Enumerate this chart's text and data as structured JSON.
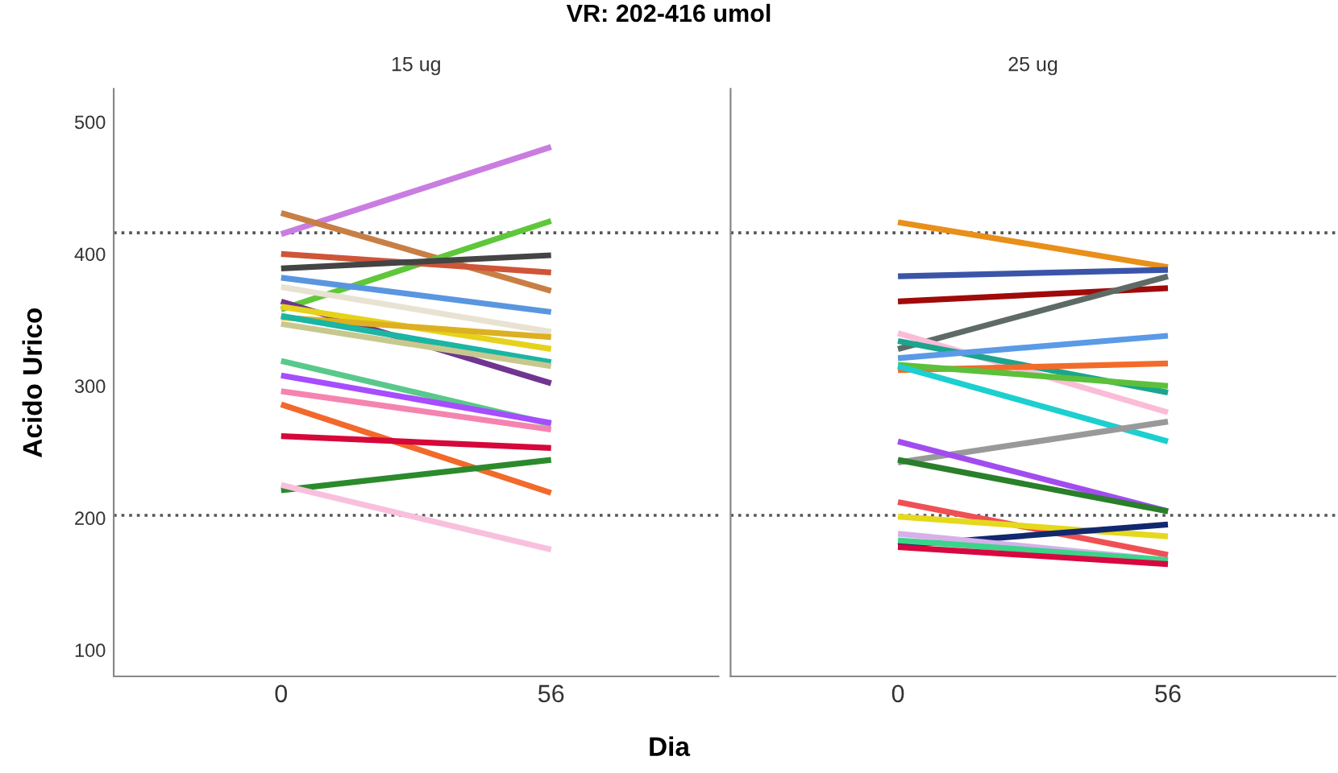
{
  "chart_data": [
    {
      "type": "line",
      "title": "15 ug",
      "annotations": [
        "VR: 202-416 umol"
      ],
      "xlabel": "Dia",
      "ylabel": "Acido Urico",
      "categories": [
        "0",
        "56"
      ],
      "ylim": [
        80,
        525
      ],
      "yticks": [
        100,
        200,
        300,
        400,
        500
      ],
      "grid": false,
      "legend": false,
      "marker": "none",
      "line_style": "solid",
      "ref_lines": [
        {
          "axis": "y",
          "value": 202,
          "color": "#555555",
          "line_style": "dotted"
        },
        {
          "axis": "y",
          "value": 416,
          "color": "#555555",
          "line_style": "dotted"
        }
      ],
      "series": [
        {
          "color": "#c97de0",
          "values": [
            415,
            481
          ]
        },
        {
          "color": "#c87f45",
          "values": [
            431,
            372
          ]
        },
        {
          "color": "#5fc73a",
          "values": [
            358,
            425
          ]
        },
        {
          "color": "#cf5538",
          "values": [
            400,
            386
          ]
        },
        {
          "color": "#444444",
          "values": [
            389,
            399
          ]
        },
        {
          "color": "#5a96e0",
          "values": [
            382,
            356
          ]
        },
        {
          "color": "#e8e2d2",
          "values": [
            375,
            341
          ]
        },
        {
          "color": "#6f3590",
          "values": [
            364,
            302
          ]
        },
        {
          "color": "#e6d21a",
          "values": [
            360,
            328
          ]
        },
        {
          "color": "#dcb021",
          "values": [
            352,
            337
          ]
        },
        {
          "color": "#1bb5a3",
          "values": [
            353,
            318
          ]
        },
        {
          "color": "#c8c88e",
          "values": [
            347,
            315
          ]
        },
        {
          "color": "#58c98a",
          "values": [
            319,
            271
          ]
        },
        {
          "color": "#a64dff",
          "values": [
            308,
            272
          ]
        },
        {
          "color": "#f583b0",
          "values": [
            296,
            267
          ]
        },
        {
          "color": "#f2692a",
          "values": [
            286,
            219
          ]
        },
        {
          "color": "#d6073a",
          "values": [
            262,
            253
          ]
        },
        {
          "color": "#2b8a2b",
          "values": [
            221,
            244
          ]
        },
        {
          "color": "#f9c0dd",
          "values": [
            225,
            176
          ]
        }
      ]
    },
    {
      "type": "line",
      "title": "25 ug",
      "categories": [
        "0",
        "56"
      ],
      "ylim": [
        80,
        525
      ],
      "yticks": [
        100,
        200,
        300,
        400,
        500
      ],
      "tick_labels": "x",
      "grid": false,
      "legend": false,
      "marker": "none",
      "line_style": "solid",
      "ref_lines": [
        {
          "axis": "y",
          "value": 202,
          "color": "#555555",
          "line_style": "dotted"
        },
        {
          "axis": "y",
          "value": 416,
          "color": "#555555",
          "line_style": "dotted"
        }
      ],
      "series": [
        {
          "color": "#e8901a",
          "values": [
            424,
            390
          ]
        },
        {
          "color": "#3a55a8",
          "values": [
            383,
            388
          ]
        },
        {
          "color": "#a00a0a",
          "values": [
            364,
            374
          ]
        },
        {
          "color": "#5e6a66",
          "values": [
            328,
            383
          ]
        },
        {
          "color": "#fbbcd8",
          "values": [
            340,
            280
          ]
        },
        {
          "color": "#1ba58f",
          "values": [
            334,
            295
          ]
        },
        {
          "color": "#5a9ae6",
          "values": [
            321,
            338
          ]
        },
        {
          "color": "#f36b2a",
          "values": [
            312,
            317
          ]
        },
        {
          "color": "#5cc03a",
          "values": [
            316,
            300
          ]
        },
        {
          "color": "#1ccfd0",
          "values": [
            315,
            258
          ]
        },
        {
          "color": "#999999",
          "values": [
            242,
            273
          ]
        },
        {
          "color": "#a24cf0",
          "values": [
            258,
            205
          ]
        },
        {
          "color": "#2a7f2a",
          "values": [
            244,
            205
          ]
        },
        {
          "color": "#ef5055",
          "values": [
            212,
            172
          ]
        },
        {
          "color": "#e6d81c",
          "values": [
            201,
            186
          ]
        },
        {
          "color": "#12286e",
          "values": [
            179,
            195
          ]
        },
        {
          "color": "#d6b0e8",
          "values": [
            188,
            168
          ]
        },
        {
          "color": "#3ad48a",
          "values": [
            183,
            168
          ]
        },
        {
          "color": "#d8073f",
          "values": [
            178,
            165
          ]
        }
      ]
    }
  ]
}
